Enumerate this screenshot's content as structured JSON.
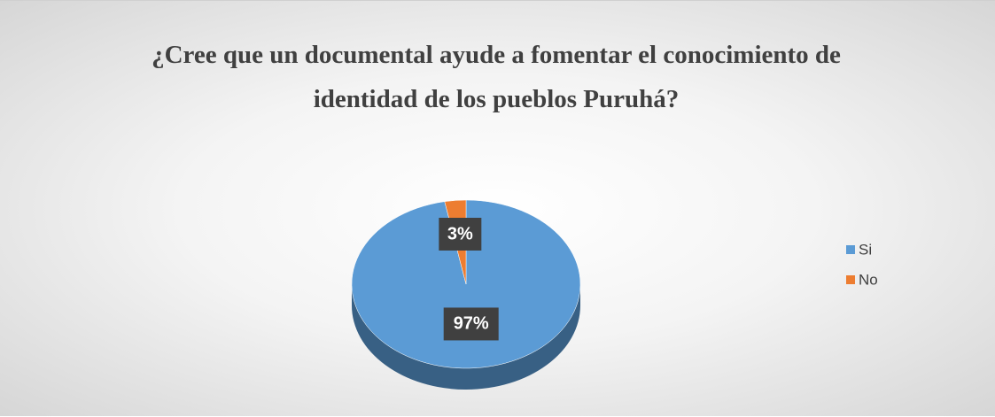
{
  "chart_data": {
    "type": "pie",
    "title": "¿Cree que un documental ayude a fomentar el conocimiento de identidad de los pueblos Puruhá?",
    "categories": [
      "Si",
      "No"
    ],
    "values": [
      97,
      3
    ],
    "value_labels": [
      "97%",
      "3%"
    ],
    "colors": [
      "#5b9bd5",
      "#ed7d31"
    ],
    "legend": "right"
  }
}
